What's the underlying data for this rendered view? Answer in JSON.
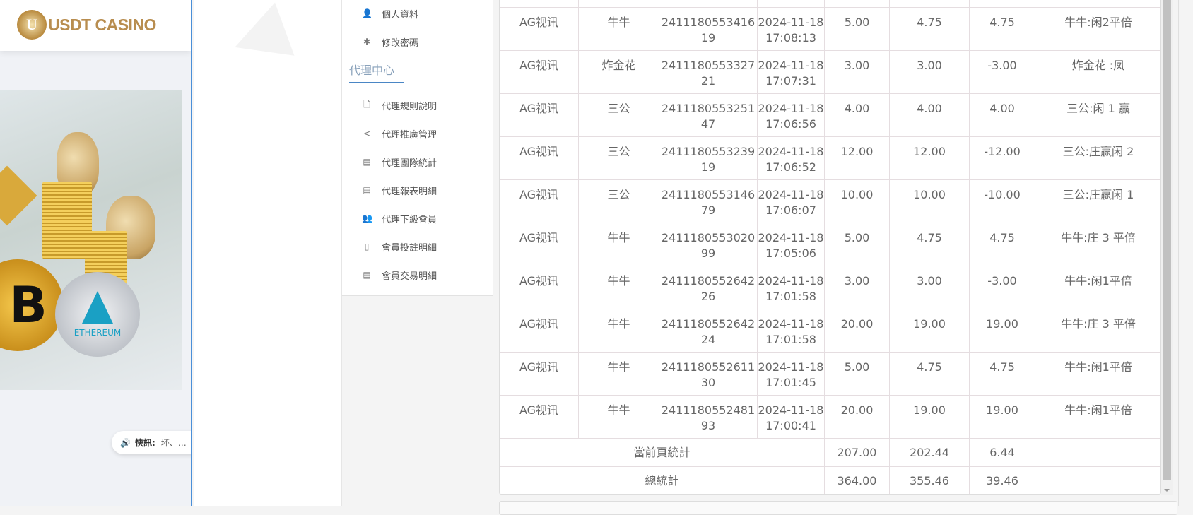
{
  "brand": {
    "logo_letter": "U",
    "name": "USDT CASINO"
  },
  "banner": {
    "eth_label": "ETHEREUM",
    "btc_symbol": "B"
  },
  "news": {
    "label": "快訊:",
    "text": "坏、…"
  },
  "sidebar": {
    "account_items": [
      {
        "label": "個人資料",
        "icon": "user-icon"
      },
      {
        "label": "修改密碼",
        "icon": "gear-icon"
      }
    ],
    "section_title": "代理中心",
    "agent_items": [
      {
        "label": "代理規則說明",
        "icon": "file-icon"
      },
      {
        "label": "代理推廣管理",
        "icon": "share-icon"
      },
      {
        "label": "代理團隊統計",
        "icon": "book-icon"
      },
      {
        "label": "代理報表明細",
        "icon": "book-icon"
      },
      {
        "label": "代理下級會員",
        "icon": "users-icon"
      },
      {
        "label": "會員投註明細",
        "icon": "clipboard-icon"
      },
      {
        "label": "會員交易明細",
        "icon": "list-icon"
      }
    ]
  },
  "table": {
    "rows": [
      [
        "AG视讯",
        "牛牛",
        "241118055341619",
        "2024-11-18 17:08:13",
        "5.00",
        "4.75",
        "4.75",
        "牛牛:闲2平倍"
      ],
      [
        "AG视讯",
        "炸金花",
        "241118055332721",
        "2024-11-18 17:07:31",
        "3.00",
        "3.00",
        "-3.00",
        "炸金花 :凤"
      ],
      [
        "AG视讯",
        "三公",
        "241118055325147",
        "2024-11-18 17:06:56",
        "4.00",
        "4.00",
        "4.00",
        "三公:闲 1 赢"
      ],
      [
        "AG视讯",
        "三公",
        "241118055323919",
        "2024-11-18 17:06:52",
        "12.00",
        "12.00",
        "-12.00",
        "三公:庄赢闲 2"
      ],
      [
        "AG视讯",
        "三公",
        "241118055314679",
        "2024-11-18 17:06:07",
        "10.00",
        "10.00",
        "-10.00",
        "三公:庄赢闲 1"
      ],
      [
        "AG视讯",
        "牛牛",
        "241118055302099",
        "2024-11-18 17:05:06",
        "5.00",
        "4.75",
        "4.75",
        "牛牛:庄 3 平倍"
      ],
      [
        "AG视讯",
        "牛牛",
        "241118055264226",
        "2024-11-18 17:01:58",
        "3.00",
        "3.00",
        "-3.00",
        "牛牛:闲1平倍"
      ],
      [
        "AG视讯",
        "牛牛",
        "241118055264224",
        "2024-11-18 17:01:58",
        "20.00",
        "19.00",
        "19.00",
        "牛牛:庄 3 平倍"
      ],
      [
        "AG视讯",
        "牛牛",
        "241118055261130",
        "2024-11-18 17:01:45",
        "5.00",
        "4.75",
        "4.75",
        "牛牛:闲1平倍"
      ],
      [
        "AG视讯",
        "牛牛",
        "241118055248193",
        "2024-11-18 17:00:41",
        "20.00",
        "19.00",
        "19.00",
        "牛牛:闲1平倍"
      ]
    ],
    "summary": [
      {
        "label": "當前頁統計",
        "values": [
          "207.00",
          "202.44",
          "6.44"
        ]
      },
      {
        "label": "總統計",
        "values": [
          "364.00",
          "355.46",
          "39.46"
        ]
      }
    ]
  }
}
